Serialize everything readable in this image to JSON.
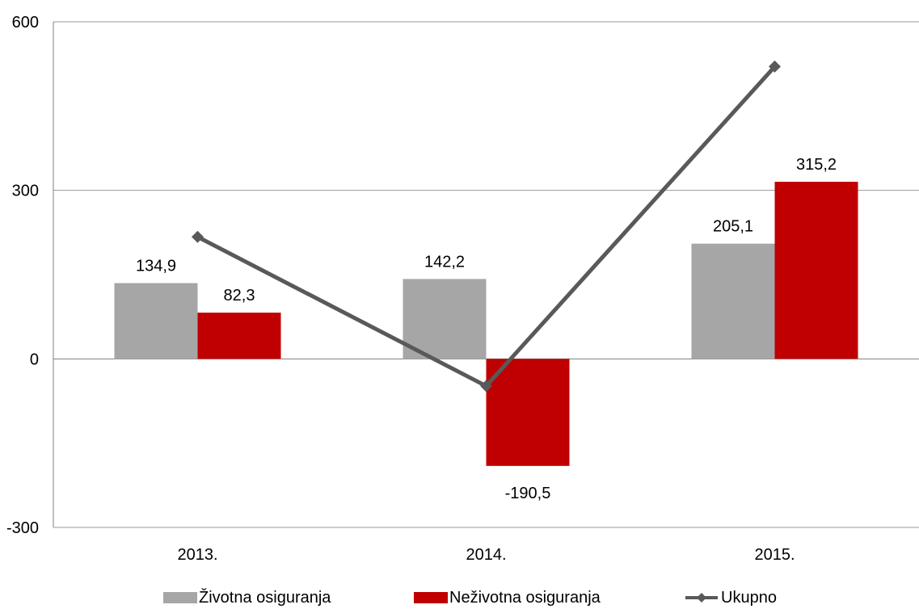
{
  "chart_data": {
    "type": "bar",
    "categories": [
      "2013.",
      "2014.",
      "2015."
    ],
    "series": [
      {
        "name": "Životna osiguranja",
        "type": "bar",
        "color": "#a6a6a6",
        "values": [
          134.9,
          142.2,
          205.1
        ],
        "labels": [
          "134,9",
          "142,2",
          "205,1"
        ]
      },
      {
        "name": "Neživotna osiguranja",
        "type": "bar",
        "color": "#c00000",
        "values": [
          82.3,
          -190.5,
          315.2
        ],
        "labels": [
          "82,3",
          "-190,5",
          "315,2"
        ]
      },
      {
        "name": "Ukupno",
        "type": "line",
        "marker": "diamond",
        "color": "#595959",
        "values": [
          217.2,
          -48.3,
          520.3
        ]
      }
    ],
    "ylim": [
      -300,
      600
    ],
    "yticks": [
      -300,
      0,
      300,
      600
    ],
    "ytick_labels": [
      "-300",
      "0",
      "300",
      "600"
    ],
    "grid": true,
    "legend_position": "bottom"
  }
}
